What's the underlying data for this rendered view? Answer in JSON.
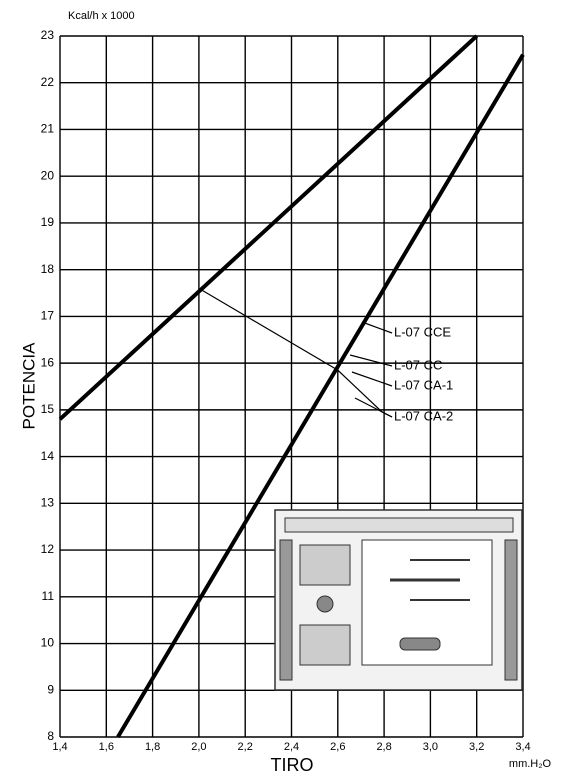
{
  "chart_data": {
    "type": "line",
    "y_unit": "Kcal/h x 1000",
    "ylabel": "POTENCIA",
    "xlabel": "TIRO",
    "x_unit": "mm.H₂O",
    "series": [
      {
        "color": "#000000",
        "x": [
          1.4,
          3.2
        ],
        "values": [
          14.8,
          23
        ]
      },
      {
        "color": "#000000",
        "x": [
          1.65,
          3.4
        ],
        "values": [
          8,
          22.6
        ]
      }
    ],
    "annotations": [
      "L-07 CCE",
      "L-07 CC",
      "L-07 CA-1",
      "L-07 CA-2"
    ],
    "xlim": [
      1.4,
      3.4
    ],
    "xticks": [
      {
        "value": 1.4,
        "label": "1,4"
      },
      {
        "value": 1.6,
        "label": "1,6"
      },
      {
        "value": 1.8,
        "label": "1,8"
      },
      {
        "value": 2.0,
        "label": "2,0"
      },
      {
        "value": 2.2,
        "label": "2,2"
      },
      {
        "value": 2.4,
        "label": "2,4"
      },
      {
        "value": 2.6,
        "label": "2,6"
      },
      {
        "value": 2.8,
        "label": "2,8"
      },
      {
        "value": 3.0,
        "label": "3,0"
      },
      {
        "value": 3.2,
        "label": "3,2"
      },
      {
        "value": 3.4,
        "label": "3,4"
      }
    ],
    "ylim": [
      8,
      23
    ],
    "yticks": [
      8,
      9,
      10,
      11,
      12,
      13,
      14,
      15,
      16,
      17,
      18,
      19,
      20,
      21,
      22,
      23
    ],
    "grid": true
  }
}
